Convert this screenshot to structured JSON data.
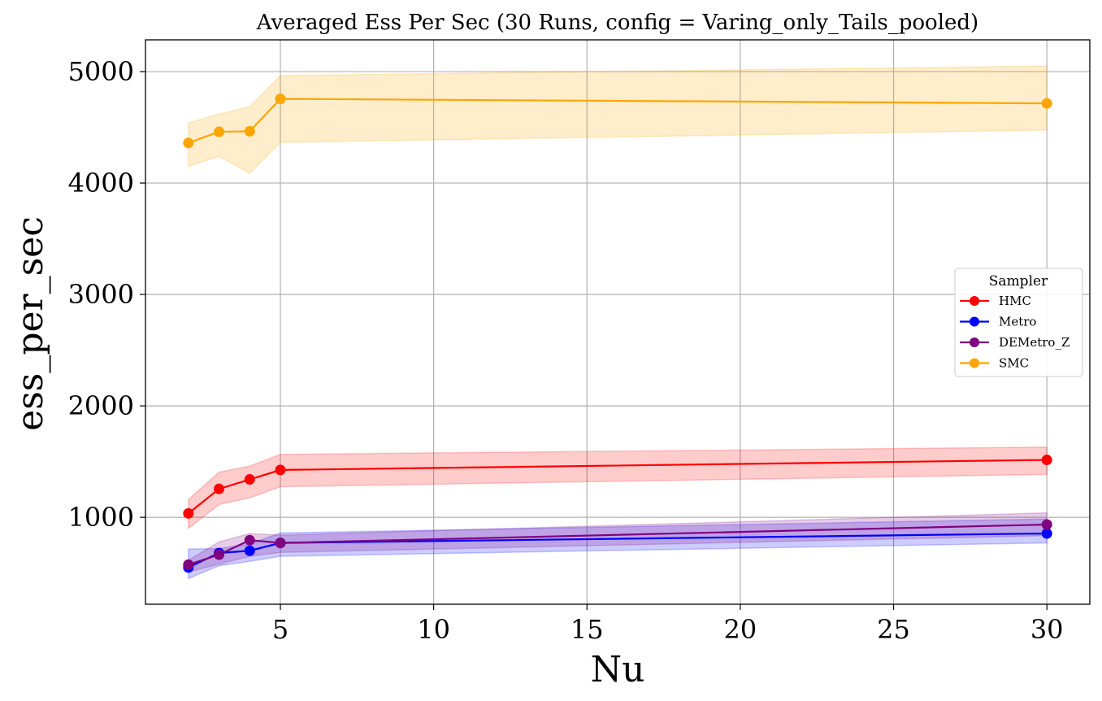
{
  "chart_data": {
    "type": "line",
    "title": "Averaged Ess Per Sec (30 Runs, config = Varing_only_Tails_pooled)",
    "xlabel": "Nu",
    "ylabel": "ess_per_sec",
    "x": [
      2,
      3,
      4,
      5,
      30
    ],
    "xlim": [
      0.6,
      31.4
    ],
    "ylim": [
      220,
      5285
    ],
    "xticks": [
      5,
      10,
      15,
      20,
      25,
      30
    ],
    "yticks": [
      1000,
      2000,
      3000,
      4000,
      5000
    ],
    "grid": true,
    "legend": {
      "title": "Sampler",
      "placement": "center-right"
    },
    "series": [
      {
        "name": "HMC",
        "color": "#ff0000",
        "values": [
          1035,
          1255,
          1340,
          1425,
          1515
        ],
        "lower": [
          900,
          1115,
          1175,
          1275,
          1385
        ],
        "upper": [
          1160,
          1405,
          1460,
          1565,
          1630
        ]
      },
      {
        "name": "Metro",
        "color": "#0000ff",
        "values": [
          550,
          680,
          700,
          770,
          855
        ],
        "lower": [
          450,
          565,
          605,
          650,
          770
        ],
        "upper": [
          715,
          720,
          760,
          860,
          985
        ]
      },
      {
        "name": "DEMetro_Z",
        "color": "#800080",
        "values": [
          575,
          665,
          795,
          770,
          935
        ],
        "lower": [
          510,
          580,
          650,
          685,
          835
        ],
        "upper": [
          615,
          780,
          855,
          840,
          1040
        ]
      },
      {
        "name": "SMC",
        "color": "#ffa500",
        "values": [
          4360,
          4460,
          4465,
          4755,
          4715
        ],
        "lower": [
          4150,
          4240,
          4085,
          4365,
          4475
        ],
        "upper": [
          4540,
          4620,
          4685,
          4965,
          5050
        ]
      }
    ]
  }
}
